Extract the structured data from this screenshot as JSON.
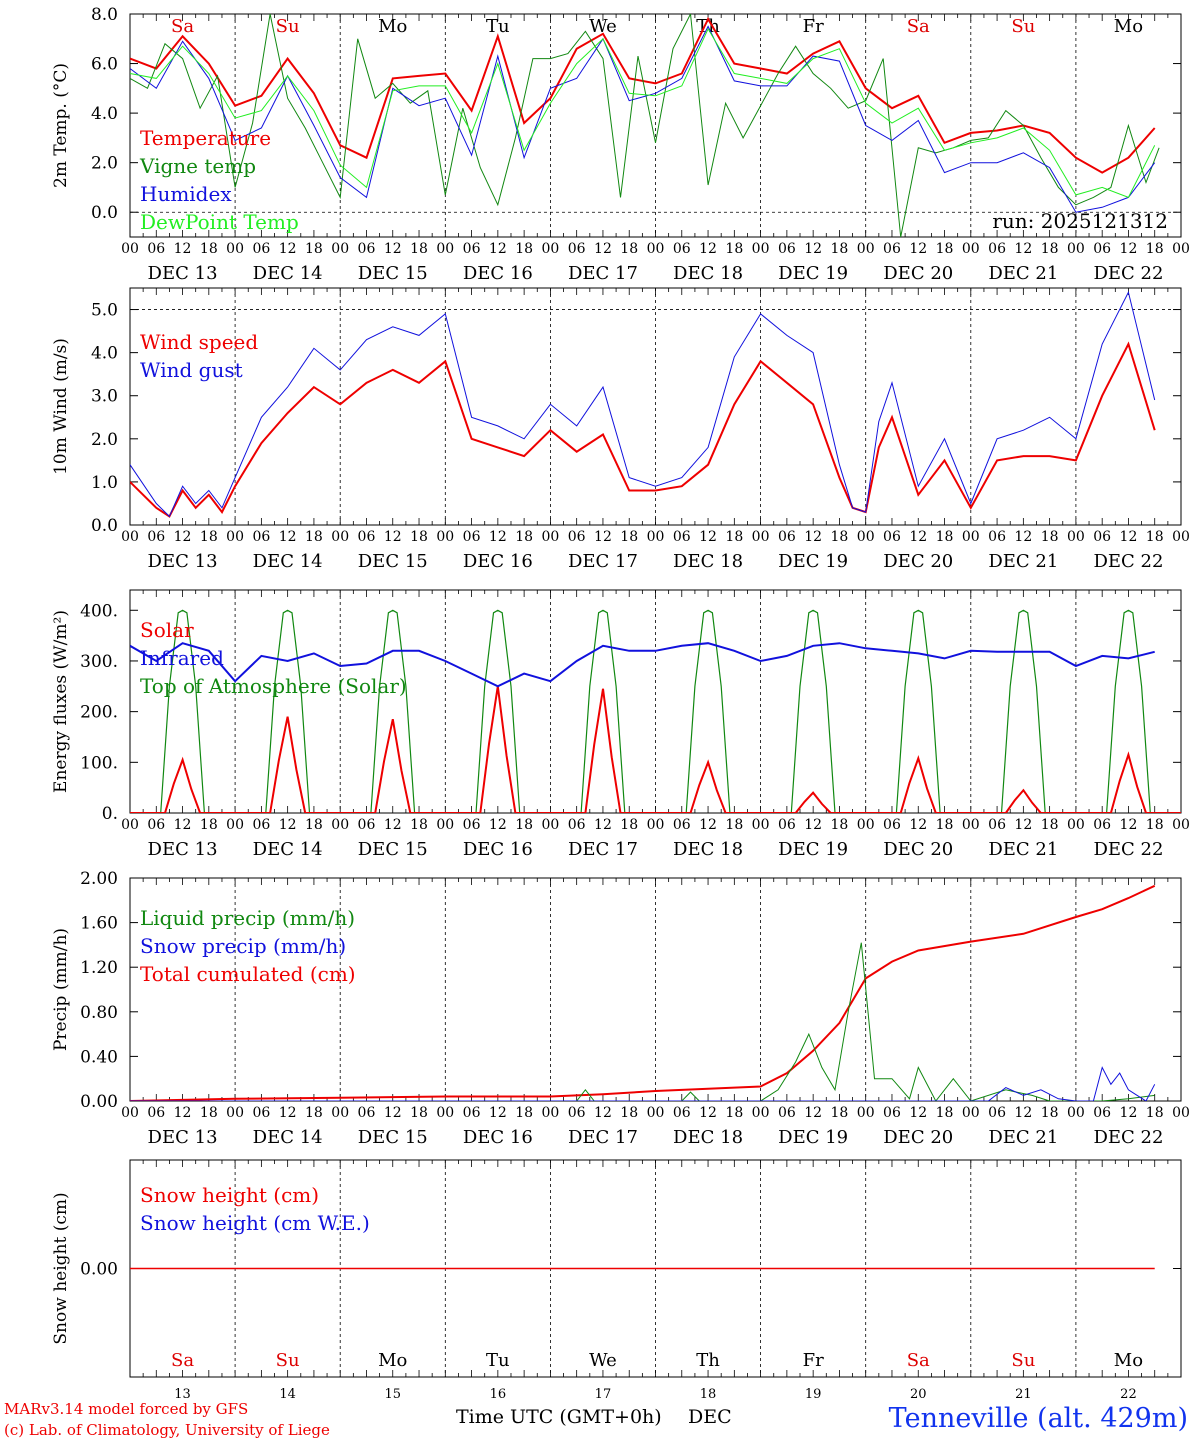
{
  "footer": {
    "credit_line1": "MARv3.14 model forced by GFS",
    "credit_line2": "(c) Lab. of Climatology, University of Liege",
    "xlabel": "Time UTC (GMT+0h)",
    "month": "DEC",
    "station": "Tenneville (alt. 429m)",
    "day_numbers": [
      "13",
      "14",
      "15",
      "16",
      "17",
      "18",
      "19",
      "20",
      "21",
      "22"
    ]
  },
  "run_label": "run: 2025121312",
  "day_names": [
    "Sa",
    "Su",
    "Mo",
    "Tu",
    "We",
    "Th",
    "Fr",
    "Sa",
    "Su",
    "Mo"
  ],
  "day_colors": [
    "#dd0000",
    "#dd0000",
    "#000000",
    "#000000",
    "#000000",
    "#000000",
    "#000000",
    "#dd0000",
    "#dd0000",
    "#000000"
  ],
  "hour_ticks": [
    "00",
    "06",
    "12",
    "18"
  ],
  "date_labels": [
    "DEC 13",
    "DEC 14",
    "DEC 15",
    "DEC 16",
    "DEC 17",
    "DEC 18",
    "DEC 19",
    "DEC 20",
    "DEC 21",
    "DEC 22"
  ],
  "colors": {
    "red": "#ee0000",
    "green": "#118811",
    "blue": "#1111dd",
    "lightgreen": "#22ee22"
  },
  "chart_data": [
    {
      "type": "line",
      "id": "temp",
      "ylabel": "2m Temp. (°C)",
      "ylim": [
        -1,
        8
      ],
      "yticks": [
        "8.0",
        "6.0",
        "4.0",
        "2.0",
        "0.0"
      ],
      "yticks_val": [
        8,
        6,
        4,
        2,
        0
      ],
      "dashed_y": [
        0
      ],
      "x_unit": "hours since DEC 13 00 UTC",
      "legend": [
        "Temperature",
        "Vigne temp",
        "Humidex",
        "DewPoint Temp"
      ],
      "series": [
        {
          "name": "Temperature",
          "color": "red",
          "width": 2,
          "x": [
            0,
            6,
            12,
            18,
            24,
            30,
            36,
            42,
            48,
            54,
            60,
            66,
            72,
            78,
            84,
            90,
            96,
            102,
            108,
            114,
            120,
            126,
            132,
            138,
            144,
            150,
            156,
            162,
            168,
            174,
            180,
            186,
            192,
            198,
            204,
            210,
            216,
            222,
            228,
            234
          ],
          "values": [
            6.2,
            5.8,
            7.1,
            6.0,
            4.3,
            4.7,
            6.2,
            4.8,
            2.7,
            2.2,
            5.4,
            5.5,
            5.6,
            4.1,
            7.1,
            3.6,
            4.6,
            6.6,
            7.2,
            5.4,
            5.2,
            5.6,
            7.8,
            6.0,
            5.8,
            5.6,
            6.4,
            6.9,
            5.0,
            4.2,
            4.7,
            2.8,
            3.2,
            3.3,
            3.5,
            3.2,
            2.2,
            1.6,
            2.2,
            3.4
          ]
        },
        {
          "name": "Vigne temp",
          "color": "green",
          "width": 1,
          "x": [
            0,
            4,
            8,
            12,
            16,
            20,
            24,
            28,
            32,
            36,
            40,
            44,
            48,
            52,
            56,
            60,
            64,
            68,
            72,
            76,
            80,
            84,
            88,
            92,
            96,
            100,
            104,
            108,
            112,
            116,
            120,
            124,
            128,
            132,
            136,
            140,
            144,
            148,
            152,
            156,
            160,
            164,
            168,
            172,
            176,
            180,
            184,
            188,
            192,
            196,
            200,
            204,
            208,
            212,
            216,
            220,
            224,
            228,
            232,
            235
          ],
          "values": [
            5.4,
            5.0,
            6.8,
            6.2,
            4.2,
            5.5,
            1.0,
            3.6,
            8.0,
            4.6,
            3.4,
            2.0,
            0.6,
            7.0,
            4.6,
            5.2,
            4.4,
            4.9,
            0.7,
            4.2,
            1.8,
            0.3,
            3.0,
            6.2,
            6.2,
            6.4,
            7.3,
            6.2,
            0.6,
            6.3,
            2.8,
            6.6,
            8.0,
            1.1,
            4.4,
            3.0,
            4.3,
            5.6,
            6.7,
            5.6,
            5.0,
            4.2,
            4.5,
            6.2,
            -1.0,
            2.6,
            2.4,
            2.6,
            2.9,
            3.0,
            4.1,
            3.5,
            2.2,
            1.0,
            0.3,
            0.6,
            1.0,
            3.5,
            1.2,
            2.6
          ]
        },
        {
          "name": "Humidex",
          "color": "blue",
          "width": 1,
          "x": [
            0,
            6,
            12,
            18,
            24,
            30,
            36,
            42,
            48,
            54,
            60,
            66,
            72,
            78,
            84,
            90,
            96,
            102,
            108,
            114,
            120,
            126,
            132,
            138,
            144,
            150,
            156,
            162,
            168,
            174,
            180,
            186,
            192,
            198,
            204,
            210,
            216,
            222,
            228,
            234
          ],
          "values": [
            5.8,
            5.0,
            6.9,
            5.4,
            2.9,
            3.4,
            5.5,
            3.5,
            1.4,
            0.6,
            5.0,
            4.3,
            4.6,
            2.3,
            6.3,
            2.2,
            5.0,
            5.4,
            7.0,
            4.5,
            4.8,
            5.4,
            7.5,
            5.3,
            5.1,
            5.1,
            6.3,
            6.1,
            3.5,
            2.9,
            3.7,
            1.6,
            2.0,
            2.0,
            2.4,
            1.8,
            0.0,
            0.2,
            0.6,
            2.0
          ]
        },
        {
          "name": "DewPoint Temp",
          "color": "lightgreen",
          "width": 1,
          "x": [
            0,
            6,
            12,
            18,
            24,
            30,
            36,
            42,
            48,
            54,
            60,
            66,
            72,
            78,
            84,
            90,
            96,
            102,
            108,
            114,
            120,
            126,
            132,
            138,
            144,
            150,
            156,
            162,
            168,
            174,
            180,
            186,
            192,
            198,
            204,
            210,
            216,
            222,
            228,
            234
          ],
          "values": [
            5.6,
            5.4,
            6.7,
            5.6,
            3.8,
            4.1,
            5.5,
            4.1,
            1.9,
            1.0,
            4.9,
            5.1,
            5.1,
            3.2,
            6.0,
            2.5,
            4.4,
            6.0,
            7.0,
            4.8,
            4.7,
            5.1,
            7.4,
            5.6,
            5.4,
            5.2,
            6.2,
            6.6,
            4.4,
            3.6,
            4.2,
            2.5,
            2.8,
            3.0,
            3.4,
            2.5,
            0.7,
            1.0,
            0.6,
            2.7
          ]
        }
      ]
    },
    {
      "type": "line",
      "id": "wind",
      "ylabel": "10m Wind (m/s)",
      "ylim": [
        0,
        5.5
      ],
      "yticks": [
        "5.0",
        "4.0",
        "3.0",
        "2.0",
        "1.0",
        "0.0"
      ],
      "yticks_val": [
        5,
        4,
        3,
        2,
        1,
        0
      ],
      "dashed_y": [
        5
      ],
      "legend": [
        "Wind speed",
        "Wind gust"
      ],
      "series": [
        {
          "name": "Wind speed",
          "color": "red",
          "width": 2,
          "x": [
            0,
            6,
            9,
            12,
            15,
            18,
            21,
            24,
            30,
            36,
            42,
            48,
            54,
            60,
            66,
            72,
            78,
            84,
            90,
            96,
            102,
            108,
            114,
            120,
            126,
            132,
            138,
            144,
            150,
            156,
            162,
            165,
            168,
            171,
            174,
            180,
            186,
            192,
            198,
            204,
            210,
            216,
            222,
            228,
            234
          ],
          "values": [
            1.0,
            0.4,
            0.2,
            0.8,
            0.4,
            0.7,
            0.3,
            0.9,
            1.9,
            2.6,
            3.2,
            2.8,
            3.3,
            3.6,
            3.3,
            3.8,
            2.0,
            1.8,
            1.6,
            2.2,
            1.7,
            2.1,
            0.8,
            0.8,
            0.9,
            1.4,
            2.8,
            3.8,
            3.3,
            2.8,
            1.1,
            0.4,
            0.3,
            1.8,
            2.5,
            0.7,
            1.5,
            0.4,
            1.5,
            1.6,
            1.6,
            1.5,
            3.0,
            4.2,
            2.2
          ]
        },
        {
          "name": "Wind gust",
          "color": "blue",
          "width": 1,
          "x": [
            0,
            6,
            9,
            12,
            15,
            18,
            21,
            24,
            30,
            36,
            42,
            48,
            54,
            60,
            66,
            72,
            78,
            84,
            90,
            96,
            102,
            108,
            114,
            120,
            126,
            132,
            138,
            144,
            150,
            156,
            162,
            165,
            168,
            171,
            174,
            180,
            186,
            192,
            198,
            204,
            210,
            216,
            222,
            228,
            234
          ],
          "values": [
            1.4,
            0.5,
            0.2,
            0.9,
            0.5,
            0.8,
            0.4,
            1.1,
            2.5,
            3.2,
            4.1,
            3.6,
            4.3,
            4.6,
            4.4,
            4.9,
            2.5,
            2.3,
            2.0,
            2.8,
            2.3,
            3.2,
            1.1,
            0.9,
            1.1,
            1.8,
            3.9,
            4.9,
            4.4,
            4.0,
            1.4,
            0.4,
            0.3,
            2.4,
            3.3,
            0.9,
            2.0,
            0.5,
            2.0,
            2.2,
            2.5,
            2.0,
            4.2,
            5.4,
            2.9
          ]
        }
      ]
    },
    {
      "type": "line",
      "id": "energy",
      "ylabel": "Energy fluxes (W/m²)",
      "ylim": [
        0,
        440
      ],
      "yticks": [
        "400.",
        "300.",
        "200.",
        "100.",
        "0."
      ],
      "yticks_val": [
        400,
        300,
        200,
        100,
        0
      ],
      "dashed_y": [],
      "legend": [
        "Solar",
        "Infrared",
        "Top of Atmosphere (Solar)"
      ],
      "solar_peaks": [
        105,
        190,
        185,
        250,
        245,
        100,
        40,
        108,
        45,
        115
      ],
      "toa_peak": 400,
      "series": [
        {
          "name": "Infrared",
          "color": "blue",
          "width": 2,
          "x": [
            0,
            6,
            12,
            18,
            24,
            30,
            36,
            42,
            48,
            54,
            60,
            66,
            72,
            78,
            84,
            90,
            96,
            102,
            108,
            114,
            120,
            126,
            132,
            138,
            144,
            150,
            156,
            162,
            168,
            174,
            180,
            186,
            192,
            198,
            204,
            210,
            216,
            222,
            228,
            234
          ],
          "values": [
            330,
            300,
            335,
            320,
            260,
            310,
            300,
            315,
            290,
            295,
            320,
            320,
            300,
            275,
            250,
            275,
            260,
            300,
            330,
            320,
            320,
            330,
            335,
            320,
            300,
            310,
            330,
            335,
            325,
            320,
            315,
            305,
            320,
            318,
            318,
            318,
            290,
            310,
            305,
            318
          ]
        }
      ]
    },
    {
      "type": "line",
      "id": "precip",
      "ylabel": "Precip (mm/h)",
      "ylim": [
        0,
        2.0
      ],
      "yticks": [
        "2.00",
        "1.60",
        "1.20",
        "0.80",
        "0.40",
        "0.00"
      ],
      "yticks_val": [
        2.0,
        1.6,
        1.2,
        0.8,
        0.4,
        0.0
      ],
      "dashed_y": [],
      "legend": [
        "Liquid precip (mm/h)",
        "Snow precip (mm/h)",
        "Total cumulated (cm)"
      ],
      "series": [
        {
          "name": "Total cumulated (cm)",
          "color": "red",
          "width": 2,
          "x": [
            0,
            24,
            48,
            72,
            96,
            108,
            120,
            132,
            144,
            150,
            156,
            162,
            168,
            174,
            180,
            192,
            204,
            216,
            222,
            228,
            234
          ],
          "values": [
            0.0,
            0.02,
            0.03,
            0.04,
            0.04,
            0.06,
            0.09,
            0.11,
            0.13,
            0.25,
            0.45,
            0.7,
            1.1,
            1.25,
            1.35,
            1.43,
            1.5,
            1.65,
            1.72,
            1.82,
            1.93
          ]
        },
        {
          "name": "Liquid precip (mm/h)",
          "color": "green",
          "width": 1,
          "x": [
            0,
            24,
            48,
            72,
            96,
            102,
            104,
            106,
            108,
            120,
            126,
            128,
            130,
            140,
            144,
            148,
            152,
            155,
            158,
            161,
            164,
            167,
            170,
            174,
            178,
            180,
            184,
            188,
            192,
            200,
            206,
            210,
            214,
            218,
            222,
            228,
            234
          ],
          "values": [
            0.0,
            0.0,
            0.0,
            0.0,
            0.0,
            0.0,
            0.1,
            0.0,
            0.0,
            0.0,
            0.0,
            0.08,
            0.0,
            0.0,
            0.0,
            0.1,
            0.35,
            0.6,
            0.3,
            0.1,
            0.8,
            1.42,
            0.2,
            0.2,
            0.02,
            0.3,
            0.0,
            0.2,
            0.0,
            0.1,
            0.05,
            0.0,
            0.0,
            0.0,
            0.0,
            0.02,
            0.05
          ]
        },
        {
          "name": "Snow precip (mm/h)",
          "color": "blue",
          "width": 1,
          "x": [
            0,
            24,
            48,
            72,
            96,
            120,
            144,
            168,
            196,
            200,
            204,
            208,
            212,
            216,
            220,
            222,
            224,
            226,
            228,
            230,
            232,
            234
          ],
          "values": [
            0,
            0,
            0,
            0,
            0,
            0,
            0,
            0,
            0,
            0.12,
            0.05,
            0.1,
            0.02,
            0.0,
            0.0,
            0.3,
            0.15,
            0.25,
            0.1,
            0.05,
            0.0,
            0.15
          ]
        }
      ]
    },
    {
      "type": "line",
      "id": "snow",
      "ylabel": "Snow height (cm)",
      "ylim": [
        -1,
        1
      ],
      "yticks": [
        "0.00"
      ],
      "yticks_val": [
        0
      ],
      "dashed_y": [],
      "legend": [
        "Snow height (cm)",
        "Snow height (cm W.E.)"
      ],
      "series": [
        {
          "name": "Snow height (cm)",
          "color": "red",
          "width": 1.5,
          "x": [
            0,
            234
          ],
          "values": [
            0,
            0
          ]
        }
      ]
    }
  ]
}
